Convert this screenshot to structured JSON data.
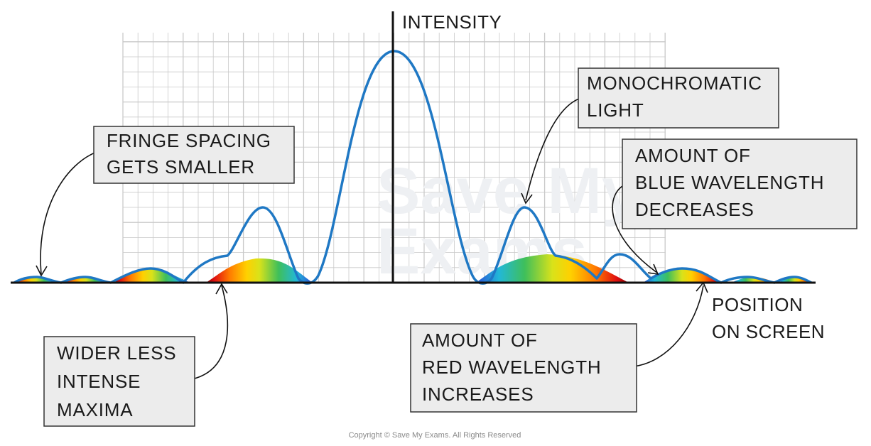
{
  "axes": {
    "y_label": "INTENSITY",
    "x_label_lines": [
      "POSITION",
      "ON SCREEN"
    ]
  },
  "annotations": {
    "fringe_spacing": [
      "FRINGE SPACING",
      "GETS SMALLER"
    ],
    "monochromatic": [
      "MONOCHROMATIC",
      "LIGHT"
    ],
    "blue_wavelength": [
      "AMOUNT OF",
      "BLUE WAVELENGTH",
      "DECREASES"
    ],
    "red_wavelength": [
      "AMOUNT OF",
      "RED WAVELENGTH",
      "INCREASES"
    ],
    "wider_maxima": [
      "WIDER LESS",
      "INTENSE",
      "MAXIMA"
    ]
  },
  "watermark": [
    "Save My",
    "Exams"
  ],
  "copyright": "Copyright © Save My Exams. All Rights Reserved",
  "colors": {
    "curve": "#1f78c4",
    "box_fill": "#ececec",
    "box_stroke": "#333333",
    "grid": "#c9c9c9",
    "axis": "#111111",
    "spectrum": [
      "#2a4fd6",
      "#22b8d8",
      "#3fbf5a",
      "#d9e21a",
      "#ffd000",
      "#ff7a00",
      "#e01010",
      "#8b0000"
    ]
  }
}
